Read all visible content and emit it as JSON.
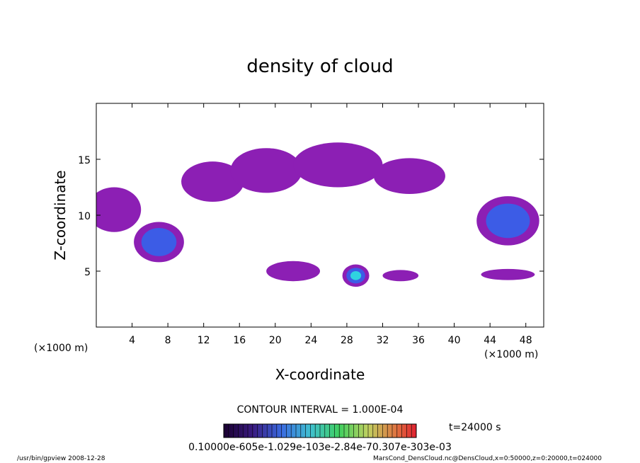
{
  "chart_data": {
    "type": "heatmap",
    "title": "density of cloud",
    "xlabel": "X-coordinate",
    "ylabel": "Z-coordinate",
    "x_unit_left": "(×1000 m)",
    "x_unit_right": "(×1000 m)",
    "xlim": [
      0,
      50
    ],
    "ylim": [
      0,
      20
    ],
    "x_ticks": [
      4,
      8,
      12,
      16,
      20,
      24,
      28,
      32,
      36,
      40,
      44,
      48
    ],
    "y_ticks": [
      5,
      10,
      15
    ],
    "contour_interval": "CONTOUR INTERVAL = 1.000E-04",
    "time_label": "t=24000 s",
    "colorbar_labels": "0.10000e-605e-1.029e-103e-2.84e-70.307e-303e-03",
    "cloud_regions": [
      {
        "x": 2,
        "z": 10.5,
        "rx": 3,
        "rz": 2,
        "level": 1
      },
      {
        "x": 7,
        "z": 7.6,
        "rx": 2.8,
        "rz": 1.8,
        "level": 2
      },
      {
        "x": 13,
        "z": 13,
        "rx": 3.5,
        "rz": 1.8,
        "level": 1
      },
      {
        "x": 19,
        "z": 14,
        "rx": 4,
        "rz": 2,
        "level": 1
      },
      {
        "x": 27,
        "z": 14.5,
        "rx": 5,
        "rz": 2,
        "level": 1
      },
      {
        "x": 35,
        "z": 13.5,
        "rx": 4,
        "rz": 1.6,
        "level": 1
      },
      {
        "x": 46,
        "z": 9.5,
        "rx": 3.5,
        "rz": 2.2,
        "level": 2
      },
      {
        "x": 22,
        "z": 5,
        "rx": 3,
        "rz": 0.9,
        "level": 1
      },
      {
        "x": 29,
        "z": 4.6,
        "rx": 1.5,
        "rz": 1.0,
        "level": 3
      },
      {
        "x": 34,
        "z": 4.6,
        "rx": 2,
        "rz": 0.5,
        "level": 1
      },
      {
        "x": 46,
        "z": 4.7,
        "rx": 3,
        "rz": 0.5,
        "level": 1
      }
    ],
    "colors": {
      "level_1": "#8c1fb4",
      "level_2": "#3c5ce6",
      "level_3": "#2fd3e0",
      "level_4": "#3cd24b"
    }
  },
  "footer": {
    "left": "/usr/bin/gpview   2008-12-28",
    "right": "MarsCond_DensCloud.nc@DensCloud,x=0:50000,z=0:20000,t=024000"
  }
}
